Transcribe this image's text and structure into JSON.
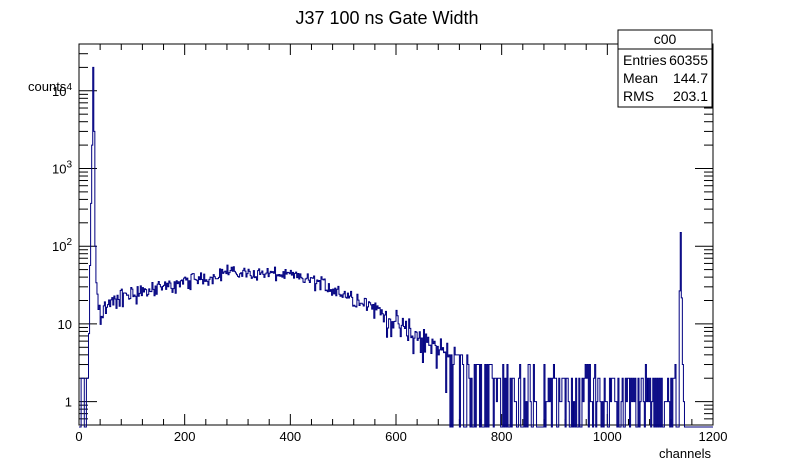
{
  "chart_data": {
    "type": "histogram",
    "title": "J37 100 ns Gate Width",
    "xlabel": "channels",
    "ylabel": "counts",
    "xlim": [
      0,
      1200
    ],
    "ylim": [
      0.5,
      40000
    ],
    "y_scale": "log",
    "grid": false,
    "line_color": "#000080",
    "x_ticks": [
      0,
      200,
      400,
      600,
      800,
      1000,
      1200
    ],
    "y_ticks": [
      {
        "value": 1,
        "base": "1",
        "exp": ""
      },
      {
        "value": 10,
        "base": "10",
        "exp": ""
      },
      {
        "value": 100,
        "base": "10",
        "exp": "2"
      },
      {
        "value": 1000,
        "base": "10",
        "exp": "3"
      },
      {
        "value": 10000,
        "base": "10",
        "exp": "4"
      }
    ],
    "stats_box": {
      "name": "c00",
      "rows": [
        {
          "label": "Entries",
          "value": "60355"
        },
        {
          "label": "Mean",
          "value": "144.7"
        },
        {
          "label": "RMS",
          "value": "203.1"
        }
      ]
    },
    "series": [
      {
        "x": [
          0,
          10,
          18,
          22,
          25,
          27,
          29,
          31,
          34,
          38,
          45,
          60,
          80,
          100,
          150,
          200,
          250,
          280,
          300,
          350,
          400,
          450,
          500,
          550,
          600,
          650,
          700,
          750,
          780,
          800,
          850,
          900,
          950,
          1000,
          1050,
          1100,
          1130,
          1135,
          1139,
          1141,
          1143,
          1146,
          1150,
          1200
        ],
        "y": [
          1,
          1,
          2,
          150,
          2000,
          20000,
          3000,
          100,
          25,
          16,
          15,
          18,
          22,
          25,
          28,
          35,
          40,
          48,
          45,
          45,
          42,
          35,
          25,
          18,
          10,
          6,
          4,
          3,
          2.5,
          2,
          1.8,
          1.6,
          1.5,
          1.5,
          1.5,
          1.5,
          1.5,
          3,
          150,
          20,
          2,
          0,
          0,
          0
        ]
      }
    ]
  }
}
